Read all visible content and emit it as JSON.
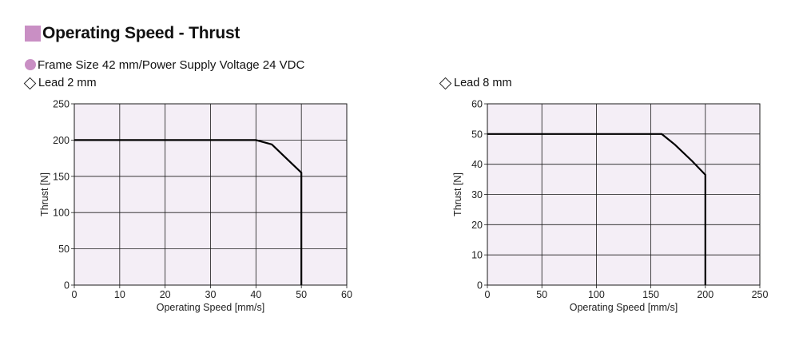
{
  "header": {
    "title": "Operating Speed - Thrust",
    "accent": "#c98fc4"
  },
  "subheader": {
    "text": "Frame Size 42 mm/Power Supply Voltage 24 VDC"
  },
  "chart_data": [
    {
      "type": "line",
      "title": "Lead 2 mm",
      "xlabel": "Operating Speed [mm/s]",
      "ylabel": "Thrust [N]",
      "xlim": [
        0,
        60
      ],
      "ylim": [
        0,
        250
      ],
      "xticks": [
        0,
        10,
        20,
        30,
        40,
        50,
        60
      ],
      "yticks": [
        0,
        50,
        100,
        150,
        200,
        250
      ],
      "grid": true,
      "plot_bg": "#f4eef6",
      "series": [
        {
          "x": [
            0,
            40,
            43.5,
            47,
            50,
            50
          ],
          "y": [
            200,
            200,
            194,
            173,
            155,
            0
          ]
        }
      ]
    },
    {
      "type": "line",
      "title": "Lead 8 mm",
      "xlabel": "Operating Speed [mm/s]",
      "ylabel": "Thrust [N]",
      "xlim": [
        0,
        250
      ],
      "ylim": [
        0,
        60
      ],
      "xticks": [
        0,
        50,
        100,
        150,
        200,
        250
      ],
      "yticks": [
        0,
        10,
        20,
        30,
        40,
        50,
        60
      ],
      "grid": true,
      "plot_bg": "#f4eef6",
      "series": [
        {
          "x": [
            0,
            160,
            172,
            188,
            200,
            200
          ],
          "y": [
            50,
            50,
            46.5,
            41,
            36.5,
            0
          ]
        }
      ]
    }
  ]
}
